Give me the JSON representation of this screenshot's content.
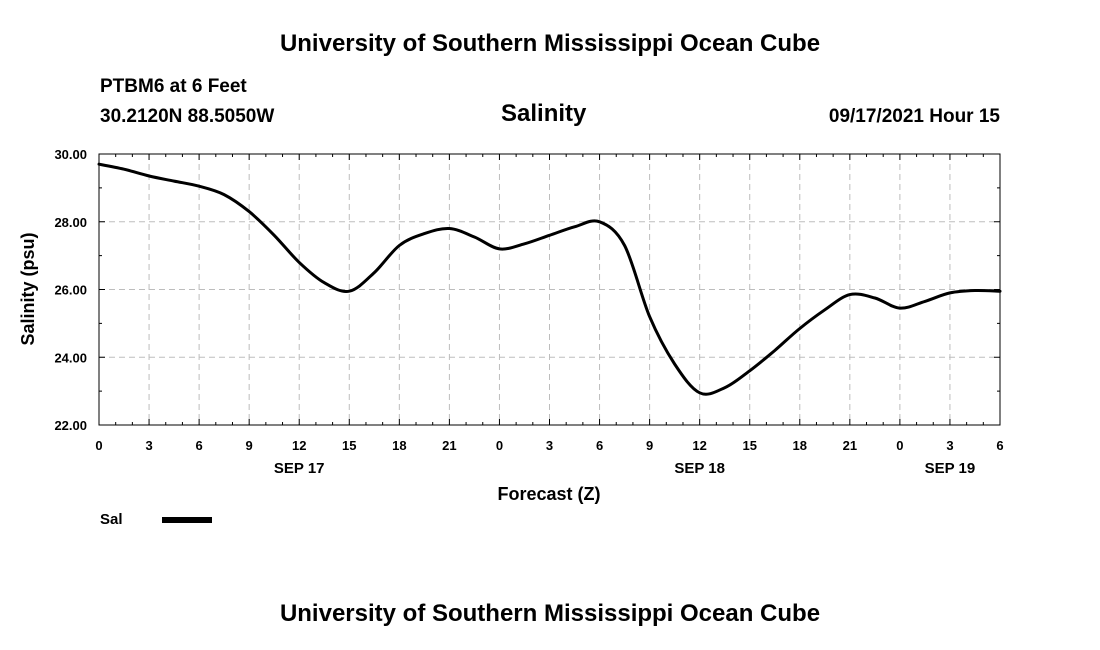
{
  "page": {
    "top_title": "University of Southern Mississippi Ocean Cube",
    "bottom_title": "University of Southern Mississippi Ocean Cube",
    "station": "PTBM6 at 6 Feet",
    "location": "30.2120N  88.5050W",
    "timestamp": "09/17/2021 Hour 15"
  },
  "chart_data": {
    "type": "line",
    "title": "Salinity",
    "xlabel": "Forecast (Z)",
    "ylabel": "Salinity (psu)",
    "ylim": [
      22,
      30
    ],
    "y_ticks": [
      "22.00",
      "24.00",
      "26.00",
      "28.00",
      "30.00"
    ],
    "xlim": [
      0,
      54
    ],
    "x_tick_labels": [
      "0",
      "3",
      "6",
      "9",
      "12",
      "15",
      "18",
      "21",
      "0",
      "3",
      "6",
      "9",
      "12",
      "15",
      "18",
      "21",
      "0",
      "3",
      "6"
    ],
    "date_labels": [
      {
        "label": "SEP 17",
        "hour": 12
      },
      {
        "label": "SEP 18",
        "hour": 36
      },
      {
        "label": "SEP 19",
        "hour": 51
      }
    ],
    "grid": true,
    "legend": "bottom-left",
    "series": [
      {
        "name": "Sal",
        "color": "#000000",
        "x": [
          0,
          1.5,
          3,
          4.5,
          6,
          7.5,
          9,
          10.5,
          12,
          13.5,
          15,
          16.5,
          18,
          19.5,
          21,
          22.5,
          24,
          25.5,
          27,
          28.5,
          30,
          31.5,
          33,
          34.5,
          36,
          37.5,
          39,
          40.5,
          42,
          43.5,
          45,
          46.5,
          48,
          49.5,
          51,
          52.5,
          54
        ],
        "values": [
          29.7,
          29.55,
          29.35,
          29.2,
          29.05,
          28.8,
          28.3,
          27.6,
          26.8,
          26.2,
          25.95,
          26.5,
          27.3,
          27.65,
          27.8,
          27.55,
          27.2,
          27.35,
          27.6,
          27.85,
          28.0,
          27.3,
          25.2,
          23.8,
          22.95,
          23.1,
          23.6,
          24.2,
          24.85,
          25.4,
          25.85,
          25.75,
          25.45,
          25.65,
          25.9,
          25.97,
          25.95
        ]
      }
    ]
  }
}
